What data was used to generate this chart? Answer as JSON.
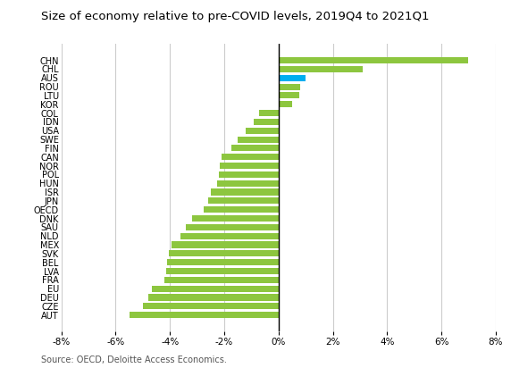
{
  "title": "Size of economy relative to pre-COVID levels, 2019Q4 to 2021Q1",
  "source": "Source: OECD, Deloitte Access Economics.",
  "categories": [
    "CHN",
    "CHL",
    "AUS",
    "ROU",
    "LTU",
    "KOR",
    "COL",
    "IDN",
    "USA",
    "SWE",
    "FIN",
    "CAN",
    "NOR",
    "POL",
    "HUN",
    "ISR",
    "JPN",
    "OECD",
    "DNK",
    "SAU",
    "NLD",
    "MEX",
    "SVK",
    "BEL",
    "LVA",
    "FRA",
    "EU",
    "DEU",
    "CZE",
    "AUT"
  ],
  "values": [
    7.0,
    3.1,
    1.0,
    0.8,
    0.75,
    0.5,
    -0.7,
    -0.9,
    -1.2,
    -1.5,
    -1.75,
    -2.1,
    -2.15,
    -2.2,
    -2.25,
    -2.5,
    -2.6,
    -2.75,
    -3.2,
    -3.4,
    -3.6,
    -3.95,
    -4.05,
    -4.1,
    -4.15,
    -4.2,
    -4.65,
    -4.8,
    -5.0,
    -5.5
  ],
  "bar_colors": [
    "#8dc63f",
    "#8dc63f",
    "#00aeef",
    "#8dc63f",
    "#8dc63f",
    "#8dc63f",
    "#8dc63f",
    "#8dc63f",
    "#8dc63f",
    "#8dc63f",
    "#8dc63f",
    "#8dc63f",
    "#8dc63f",
    "#8dc63f",
    "#8dc63f",
    "#8dc63f",
    "#8dc63f",
    "#8dc63f",
    "#8dc63f",
    "#8dc63f",
    "#8dc63f",
    "#8dc63f",
    "#8dc63f",
    "#8dc63f",
    "#8dc63f",
    "#8dc63f",
    "#8dc63f",
    "#8dc63f",
    "#8dc63f",
    "#8dc63f"
  ],
  "xlim": [
    -8,
    8
  ],
  "xticks": [
    -8,
    -6,
    -4,
    -2,
    0,
    2,
    4,
    6,
    8
  ],
  "xtick_labels": [
    "-8%",
    "-6%",
    "-4%",
    "-2%",
    "0%",
    "2%",
    "4%",
    "6%",
    "8%"
  ],
  "background_color": "#ffffff",
  "grid_color": "#cccccc",
  "title_fontsize": 9.5,
  "label_fontsize": 7,
  "tick_fontsize": 7.5,
  "source_fontsize": 7,
  "bar_height": 0.72
}
